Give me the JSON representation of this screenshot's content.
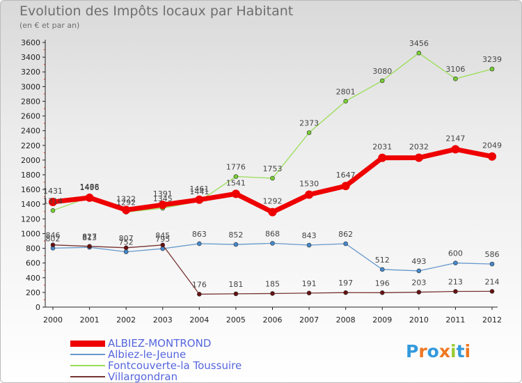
{
  "chart_data": {
    "type": "line",
    "title": "Evolution des Impôts locaux par Habitant",
    "subtitle": "(en € et par an)",
    "categories": [
      "2000",
      "2001",
      "2002",
      "2003",
      "2004",
      "2005",
      "2006",
      "2007",
      "2008",
      "2009",
      "2010",
      "2011",
      "2012"
    ],
    "ylim": [
      0,
      3600
    ],
    "yticks": [
      0,
      200,
      400,
      600,
      800,
      1000,
      1200,
      1400,
      1600,
      1800,
      2000,
      2200,
      2400,
      2600,
      2800,
      3000,
      3200,
      3400,
      3600
    ],
    "grid": false,
    "legend_position": "bottom-left",
    "series": [
      {
        "name": "Fontcouverte-la Toussuire",
        "color": "#99dd55",
        "marker": "#77cc33",
        "values": [
          1314,
          1496,
          1292,
          1345,
          1441,
          1776,
          1753,
          2373,
          2801,
          3080,
          3456,
          3106,
          3239
        ]
      },
      {
        "name": "Albiez-le-Jeune",
        "color": "#6699cc",
        "marker": "#4488cc",
        "values": [
          802,
          813,
          752,
          795,
          863,
          852,
          868,
          843,
          862,
          512,
          493,
          600,
          586
        ]
      },
      {
        "name": "Villargondran",
        "color": "#773333",
        "marker": "#661111",
        "values": [
          846,
          827,
          807,
          845,
          176,
          181,
          185,
          191,
          197,
          196,
          203,
          213,
          214
        ]
      },
      {
        "name": "ALBIEZ-MONTROND",
        "color": "#ee0000",
        "marker": "#ee0000",
        "values": [
          1431,
          1488,
          1322,
          1391,
          1461,
          1541,
          1292,
          1530,
          1647,
          2031,
          2032,
          2147,
          2049
        ]
      }
    ]
  },
  "logo": {
    "text": "Proxiti"
  }
}
